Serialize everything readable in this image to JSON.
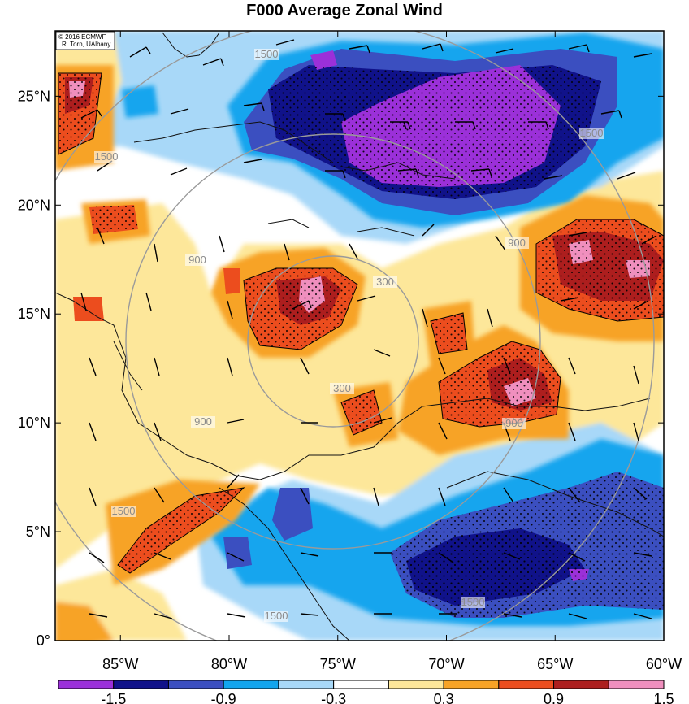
{
  "title": "F000 Average Zonal Wind",
  "credit": {
    "line1": "© 2016 ECMWF",
    "line2": "R. Torn, UAlbany"
  },
  "map": {
    "lon_ticks": [
      "85°W",
      "80°W",
      "75°W",
      "70°W",
      "65°W",
      "60°W"
    ],
    "lat_ticks": [
      "25°N",
      "20°N",
      "15°N",
      "10°N",
      "5°N",
      "0°"
    ],
    "lon_range": [
      -88,
      -60
    ],
    "lat_range": [
      0,
      28
    ],
    "range_ring_labels": [
      "300",
      "300",
      "900",
      "900",
      "900",
      "900",
      "1500",
      "1500",
      "1500",
      "1500",
      "1500",
      "1500"
    ]
  },
  "colorbar": {
    "colors": [
      "#9b30d9",
      "#10128a",
      "#3b4fc0",
      "#12a5ee",
      "#a8d8f8",
      "#ffffff",
      "#fde79a",
      "#f7a326",
      "#ec4d1e",
      "#ad1e1e",
      "#f08fbe"
    ],
    "tick_labels": [
      "-1.5",
      "-0.9",
      "-0.3",
      "0.3",
      "0.9",
      "1.5"
    ]
  }
}
